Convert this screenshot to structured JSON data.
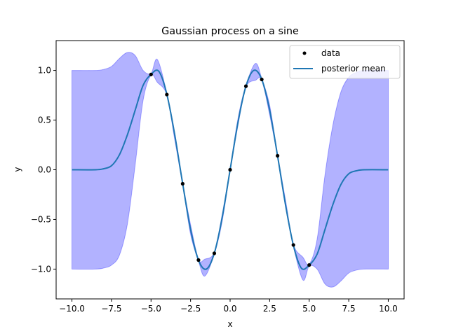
{
  "chart_data": {
    "type": "line",
    "title": "Gaussian process on a sine",
    "xlabel": "x",
    "ylabel": "y",
    "xlim": [
      -11,
      11
    ],
    "ylim": [
      -1.3,
      1.3
    ],
    "xticks": [
      -10.0,
      -7.5,
      -5.0,
      -2.5,
      0.0,
      2.5,
      5.0,
      7.5,
      10.0
    ],
    "xtick_labels": [
      "−10.0",
      "−7.5",
      "−5.0",
      "−2.5",
      "0.0",
      "2.5",
      "5.0",
      "7.5",
      "10.0"
    ],
    "yticks": [
      -1.0,
      -0.5,
      0.0,
      0.5,
      1.0
    ],
    "ytick_labels": [
      "−1.0",
      "−0.5",
      "0.0",
      "0.5",
      "1.0"
    ],
    "grid": false,
    "legend_position": "top-right",
    "band_color": "#0000ff",
    "band_opacity": 0.3,
    "mean_color": "#1f77b4",
    "points_color": "#000000",
    "points": {
      "name": "data",
      "x": [
        -5,
        -4,
        -3,
        -2,
        -1,
        0,
        1,
        2,
        3,
        4,
        5
      ],
      "y": [
        0.959,
        0.757,
        -0.141,
        -0.909,
        -0.841,
        0.0,
        0.841,
        0.909,
        0.141,
        -0.757,
        -0.959
      ]
    },
    "mean": {
      "name": "posterior mean",
      "x": [
        -10,
        -8.5,
        -8,
        -7.5,
        -7,
        -6.5,
        -6,
        -5.5,
        -5,
        -4.5,
        -4,
        -3.5,
        -3,
        -2.5,
        -2,
        -1.5,
        -1,
        -0.5,
        0,
        0.5,
        1,
        1.5,
        2,
        2.5,
        3,
        3.5,
        4,
        4.5,
        5,
        5.5,
        6,
        6.5,
        7,
        7.5,
        8,
        8.5,
        10
      ],
      "y": [
        0.0,
        0.0,
        0.01,
        0.04,
        0.15,
        0.35,
        0.6,
        0.85,
        0.96,
        0.99,
        0.76,
        0.35,
        -0.14,
        -0.6,
        -0.91,
        -1.0,
        -0.84,
        -0.48,
        0.0,
        0.48,
        0.84,
        1.0,
        0.91,
        0.6,
        0.14,
        -0.35,
        -0.76,
        -0.99,
        -0.96,
        -0.85,
        -0.6,
        -0.35,
        -0.15,
        -0.04,
        -0.01,
        0.0,
        0.0
      ]
    },
    "band": {
      "x": [
        -10,
        -8.5,
        -8,
        -7.5,
        -7,
        -6.5,
        -6,
        -5.5,
        -5,
        -4.6,
        -4,
        -3.5,
        -3,
        -2.5,
        -2,
        -1.6,
        -1,
        -0.5,
        0,
        0.5,
        1,
        1.6,
        2,
        2.5,
        3,
        3.5,
        4,
        4.6,
        5,
        5.5,
        6,
        6.5,
        7,
        7.5,
        8,
        8.5,
        10
      ],
      "upper": [
        1.0,
        1.0,
        1.01,
        1.04,
        1.12,
        1.18,
        1.15,
        1.0,
        0.97,
        1.11,
        0.77,
        0.37,
        -0.13,
        -0.55,
        -0.9,
        -0.9,
        -0.83,
        -0.45,
        0.01,
        0.52,
        0.85,
        1.07,
        0.92,
        0.65,
        0.15,
        -0.3,
        -0.75,
        -0.88,
        -0.95,
        -0.7,
        -0.05,
        0.45,
        0.78,
        0.93,
        0.98,
        1.0,
        1.0
      ],
      "lower": [
        -1.0,
        -1.0,
        -0.99,
        -0.96,
        -0.86,
        -0.55,
        0.05,
        0.7,
        0.95,
        0.88,
        0.75,
        0.3,
        -0.15,
        -0.65,
        -0.92,
        -1.07,
        -0.85,
        -0.52,
        -0.01,
        0.45,
        0.83,
        0.9,
        0.9,
        0.55,
        0.13,
        -0.37,
        -0.77,
        -1.11,
        -0.97,
        -1.0,
        -1.15,
        -1.18,
        -1.12,
        -1.04,
        -1.01,
        -1.0,
        -1.0
      ]
    }
  }
}
